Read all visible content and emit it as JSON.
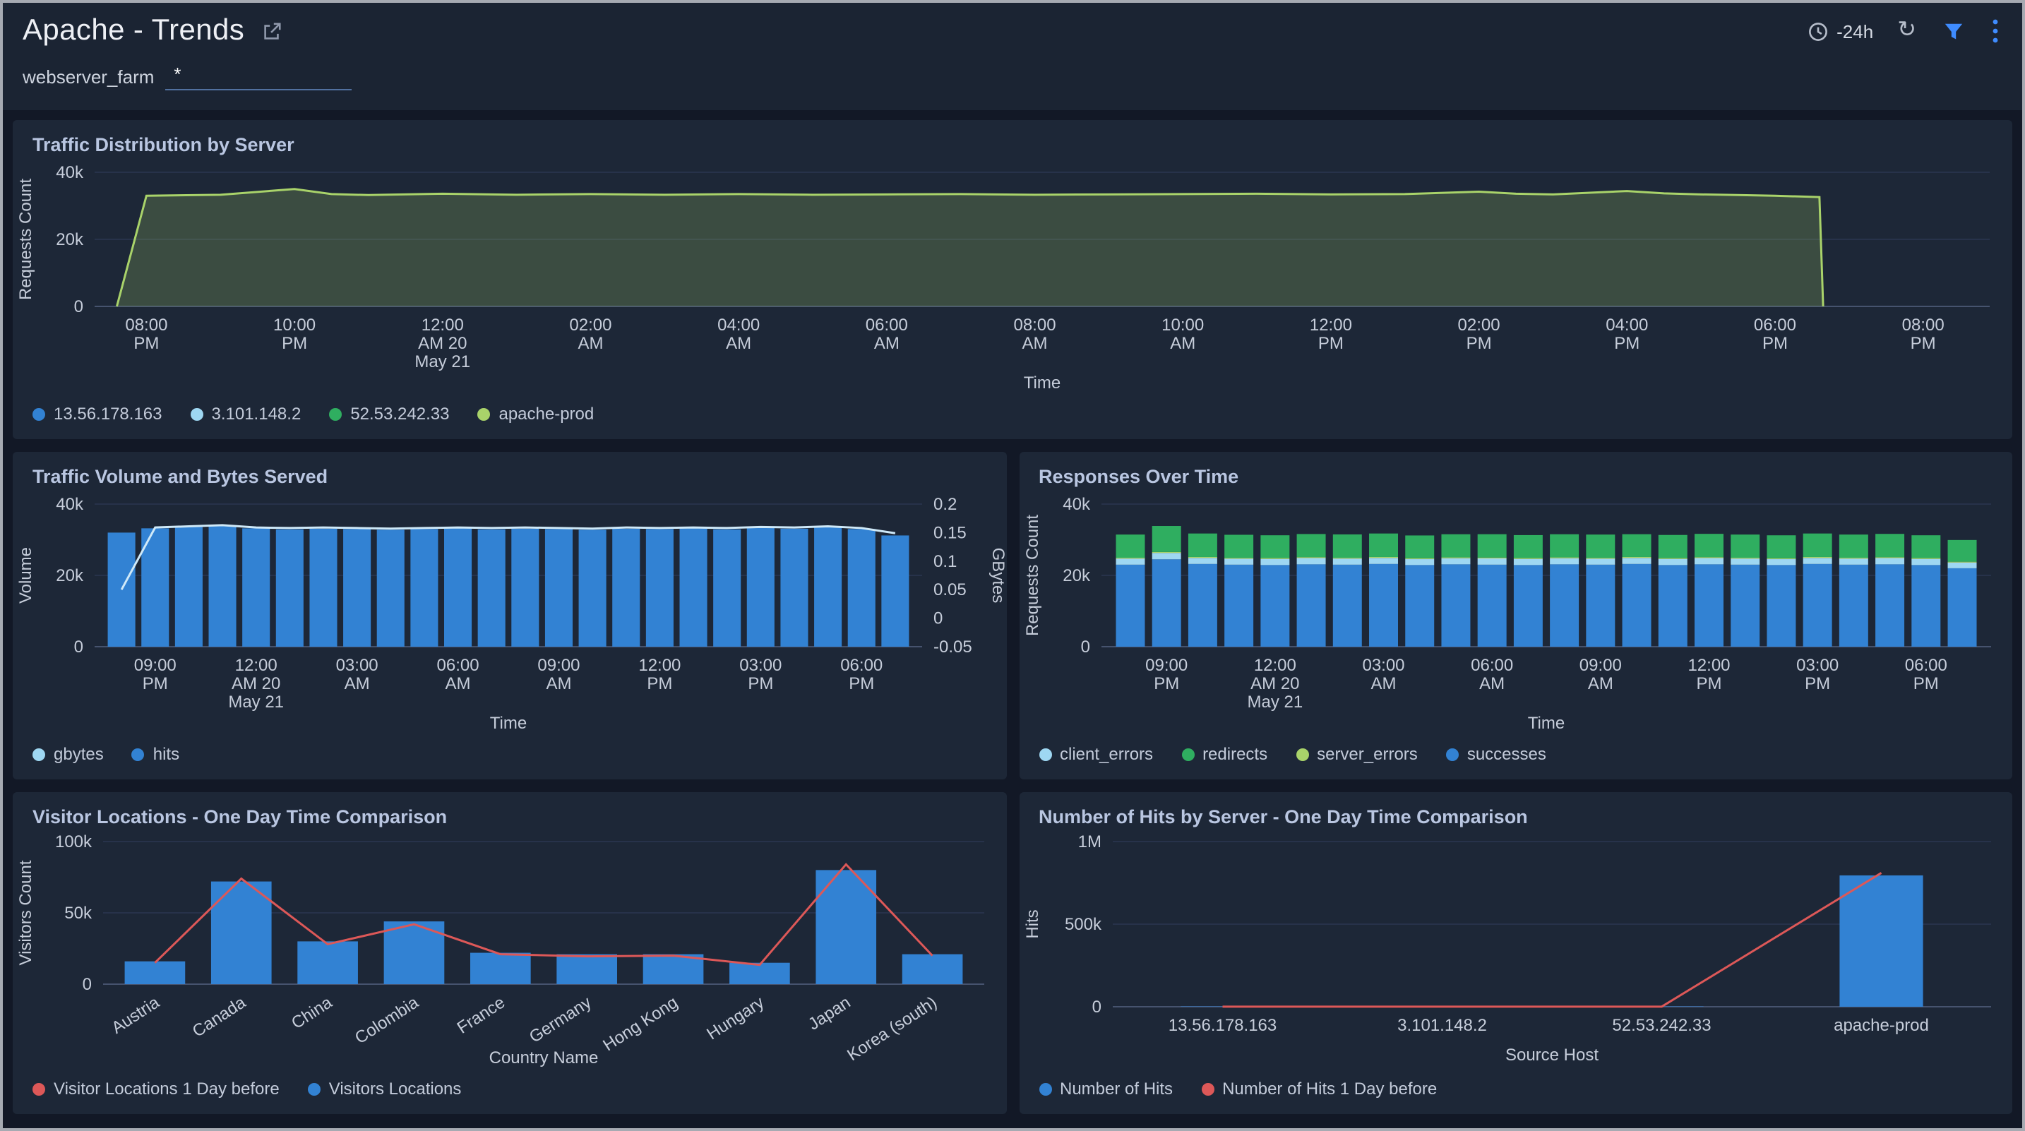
{
  "header": {
    "title": "Apache - Trends",
    "time_range": "-24h"
  },
  "filter": {
    "label": "webserver_farm",
    "value": "*"
  },
  "colors": {
    "blue": "#3282d3",
    "light_blue": "#9ed7f2",
    "green": "#2fae60",
    "lime": "#a9d36a",
    "red": "#dd5858",
    "accent": "#3f8cff"
  },
  "chart_data": [
    {
      "type": "area",
      "title": "Traffic Distribution by Server",
      "xlabel": "Time",
      "ylabel": "Requests Count",
      "ylim": [
        0,
        40000
      ],
      "ytick_values": [
        0,
        20000,
        40000
      ],
      "ytick_labels": [
        "0",
        "20k",
        "40k"
      ],
      "xlim": [
        -0.7,
        24.9
      ],
      "xticks": [
        {
          "pos": 0,
          "label": "08:00\nPM"
        },
        {
          "pos": 2,
          "label": "10:00\nPM"
        },
        {
          "pos": 4,
          "label": "12:00\nAM 20\nMay 21"
        },
        {
          "pos": 6,
          "label": "02:00\nAM"
        },
        {
          "pos": 8,
          "label": "04:00\nAM"
        },
        {
          "pos": 10,
          "label": "06:00\nAM"
        },
        {
          "pos": 12,
          "label": "08:00\nAM"
        },
        {
          "pos": 14,
          "label": "10:00\nAM"
        },
        {
          "pos": 16,
          "label": "12:00\nPM"
        },
        {
          "pos": 18,
          "label": "02:00\nPM"
        },
        {
          "pos": 20,
          "label": "04:00\nPM"
        },
        {
          "pos": 22,
          "label": "06:00\nPM"
        },
        {
          "pos": 24,
          "label": "08:00\nPM"
        }
      ],
      "series": {
        "name": "apache-prod",
        "color": "#a9d36a",
        "fill": "rgba(169,211,106,0.22)",
        "points": [
          [
            -0.4,
            0
          ],
          [
            0,
            33000
          ],
          [
            1,
            33300
          ],
          [
            2,
            35000
          ],
          [
            2.5,
            33500
          ],
          [
            3,
            33200
          ],
          [
            4,
            33600
          ],
          [
            5,
            33300
          ],
          [
            6,
            33500
          ],
          [
            7,
            33300
          ],
          [
            8,
            33500
          ],
          [
            9,
            33300
          ],
          [
            10,
            33400
          ],
          [
            11,
            33500
          ],
          [
            12,
            33300
          ],
          [
            13,
            33400
          ],
          [
            14,
            33500
          ],
          [
            15,
            33600
          ],
          [
            16,
            33400
          ],
          [
            17,
            33500
          ],
          [
            18,
            34200
          ],
          [
            18.5,
            33600
          ],
          [
            19,
            33400
          ],
          [
            20,
            34400
          ],
          [
            20.5,
            33700
          ],
          [
            21,
            33400
          ],
          [
            22,
            33000
          ],
          [
            22.6,
            32600
          ],
          [
            22.65,
            0
          ]
        ]
      },
      "legend": [
        {
          "label": "13.56.178.163",
          "color": "#3282d3"
        },
        {
          "label": "3.101.148.2",
          "color": "#9ed7f2"
        },
        {
          "label": "52.53.242.33",
          "color": "#2fae60"
        },
        {
          "label": "apache-prod",
          "color": "#a9d36a"
        }
      ]
    },
    {
      "type": "bars_line",
      "title": "Traffic Volume and Bytes Served",
      "xlabel": "Time",
      "ylabel": "Volume",
      "ylabel_right": "GBytes",
      "ylim": [
        0,
        40000
      ],
      "ytick_values": [
        0,
        20000,
        40000
      ],
      "ytick_labels": [
        "0",
        "20k",
        "40k"
      ],
      "y2lim": [
        -0.05,
        0.2
      ],
      "y2tick_values": [
        -0.05,
        0,
        0.05,
        0.1,
        0.15,
        0.2
      ],
      "y2tick_labels": [
        "-0.05",
        "0",
        "0.05",
        "0.1",
        "0.15",
        "0.2"
      ],
      "xlim": [
        -0.8,
        23.8
      ],
      "bar_color": "#3282d3",
      "line_color": "#cfe9f8",
      "bars": [
        32000,
        33200,
        33600,
        34000,
        33200,
        32900,
        33100,
        33000,
        32800,
        33000,
        33200,
        32900,
        33100,
        33000,
        32800,
        33100,
        33000,
        33200,
        32900,
        33400,
        33100,
        33600,
        33000,
        31200
      ],
      "line": [
        0.05,
        0.159,
        0.161,
        0.163,
        0.159,
        0.158,
        0.159,
        0.158,
        0.157,
        0.158,
        0.159,
        0.158,
        0.159,
        0.158,
        0.157,
        0.159,
        0.158,
        0.159,
        0.158,
        0.16,
        0.159,
        0.161,
        0.158,
        0.149
      ],
      "xticks": [
        {
          "pos": 1,
          "label": "09:00\nPM"
        },
        {
          "pos": 4,
          "label": "12:00\nAM 20\nMay 21"
        },
        {
          "pos": 7,
          "label": "03:00\nAM"
        },
        {
          "pos": 10,
          "label": "06:00\nAM"
        },
        {
          "pos": 13,
          "label": "09:00\nAM"
        },
        {
          "pos": 16,
          "label": "12:00\nPM"
        },
        {
          "pos": 19,
          "label": "03:00\nPM"
        },
        {
          "pos": 22,
          "label": "06:00\nPM"
        }
      ],
      "legend": [
        {
          "label": "gbytes",
          "color": "#9ed7f2"
        },
        {
          "label": "hits",
          "color": "#3282d3"
        }
      ]
    },
    {
      "type": "stacked_bars",
      "title": "Responses Over Time",
      "xlabel": "Time",
      "ylabel": "Requests Count",
      "ylim": [
        0,
        40000
      ],
      "ytick_values": [
        0,
        20000,
        40000
      ],
      "ytick_labels": [
        "0",
        "20k",
        "40k"
      ],
      "xlim": [
        -0.8,
        23.8
      ],
      "series": [
        {
          "name": "successes",
          "color": "#3282d3",
          "values": [
            23000,
            24500,
            23200,
            23000,
            22900,
            23100,
            23000,
            23200,
            22900,
            23100,
            23000,
            22900,
            23100,
            23000,
            23200,
            22900,
            23100,
            23000,
            22900,
            23200,
            23000,
            23100,
            22900,
            22000
          ]
        },
        {
          "name": "client_errors",
          "color": "#9ed7f2",
          "values": [
            1700,
            1800,
            1700,
            1650,
            1700,
            1750,
            1700,
            1700,
            1650,
            1700,
            1750,
            1700,
            1700,
            1650,
            1700,
            1700,
            1750,
            1700,
            1650,
            1700,
            1700,
            1750,
            1700,
            1600
          ]
        },
        {
          "name": "server_errors",
          "color": "#a9d36a",
          "values": [
            250,
            260,
            250,
            240,
            250,
            250,
            240,
            250,
            250,
            240,
            250,
            250,
            240,
            250,
            250,
            240,
            250,
            250,
            240,
            250,
            250,
            240,
            250,
            230
          ]
        },
        {
          "name": "redirects",
          "color": "#2fae60",
          "values": [
            6500,
            7300,
            6600,
            6500,
            6400,
            6500,
            6550,
            6600,
            6400,
            6500,
            6550,
            6450,
            6500,
            6550,
            6400,
            6500,
            6550,
            6500,
            6450,
            6600,
            6500,
            6550,
            6400,
            6100
          ]
        }
      ],
      "xticks": [
        {
          "pos": 1,
          "label": "09:00\nPM"
        },
        {
          "pos": 4,
          "label": "12:00\nAM 20\nMay 21"
        },
        {
          "pos": 7,
          "label": "03:00\nAM"
        },
        {
          "pos": 10,
          "label": "06:00\nAM"
        },
        {
          "pos": 13,
          "label": "09:00\nAM"
        },
        {
          "pos": 16,
          "label": "12:00\nPM"
        },
        {
          "pos": 19,
          "label": "03:00\nPM"
        },
        {
          "pos": 22,
          "label": "06:00\nPM"
        }
      ],
      "legend": [
        {
          "label": "client_errors",
          "color": "#9ed7f2"
        },
        {
          "label": "redirects",
          "color": "#2fae60"
        },
        {
          "label": "server_errors",
          "color": "#a9d36a"
        },
        {
          "label": "successes",
          "color": "#3282d3"
        }
      ]
    },
    {
      "type": "cat_bars_line",
      "title": "Visitor Locations - One Day Time Comparison",
      "xlabel": "Country Name",
      "ylabel": "Visitors Count",
      "ylim": [
        0,
        100000
      ],
      "ytick_values": [
        0,
        50000,
        100000
      ],
      "ytick_labels": [
        "0",
        "50k",
        "100k"
      ],
      "xlim": [
        -0.6,
        9.6
      ],
      "rotate_xticks": true,
      "categories": [
        "Austria",
        "Canada",
        "China",
        "Colombia",
        "France",
        "Germany",
        "Hong Kong",
        "Hungary",
        "Japan",
        "Korea (south)"
      ],
      "bar_color": "#3282d3",
      "line_color": "#dd5858",
      "bars": [
        16000,
        72000,
        30000,
        44000,
        22000,
        21000,
        21000,
        15000,
        80000,
        21000
      ],
      "line": [
        15000,
        74000,
        28000,
        42000,
        21000,
        19500,
        20000,
        13500,
        84000,
        20000
      ],
      "legend": [
        {
          "label": "Visitor Locations 1 Day before",
          "color": "#dd5858"
        },
        {
          "label": "Visitors Locations",
          "color": "#3282d3"
        }
      ]
    },
    {
      "type": "cat_bars_line",
      "title": "Number of Hits by Server - One Day Time Comparison",
      "xlabel": "Source Host",
      "ylabel": "Hits",
      "ylim": [
        0,
        1000000
      ],
      "ytick_values": [
        0,
        500000,
        1000000
      ],
      "ytick_labels": [
        "0",
        "500k",
        "1M"
      ],
      "xlim": [
        -0.5,
        3.5
      ],
      "categories": [
        "13.56.178.163",
        "3.101.148.2",
        "52.53.242.33",
        "apache-prod"
      ],
      "bar_color": "#3282d3",
      "line_color": "#dd5858",
      "bars": [
        2000,
        2000,
        2000,
        795000
      ],
      "line": [
        800,
        800,
        800,
        810000
      ],
      "legend": [
        {
          "label": "Number of Hits",
          "color": "#3282d3"
        },
        {
          "label": "Number of Hits 1 Day before",
          "color": "#dd5858"
        }
      ]
    }
  ]
}
